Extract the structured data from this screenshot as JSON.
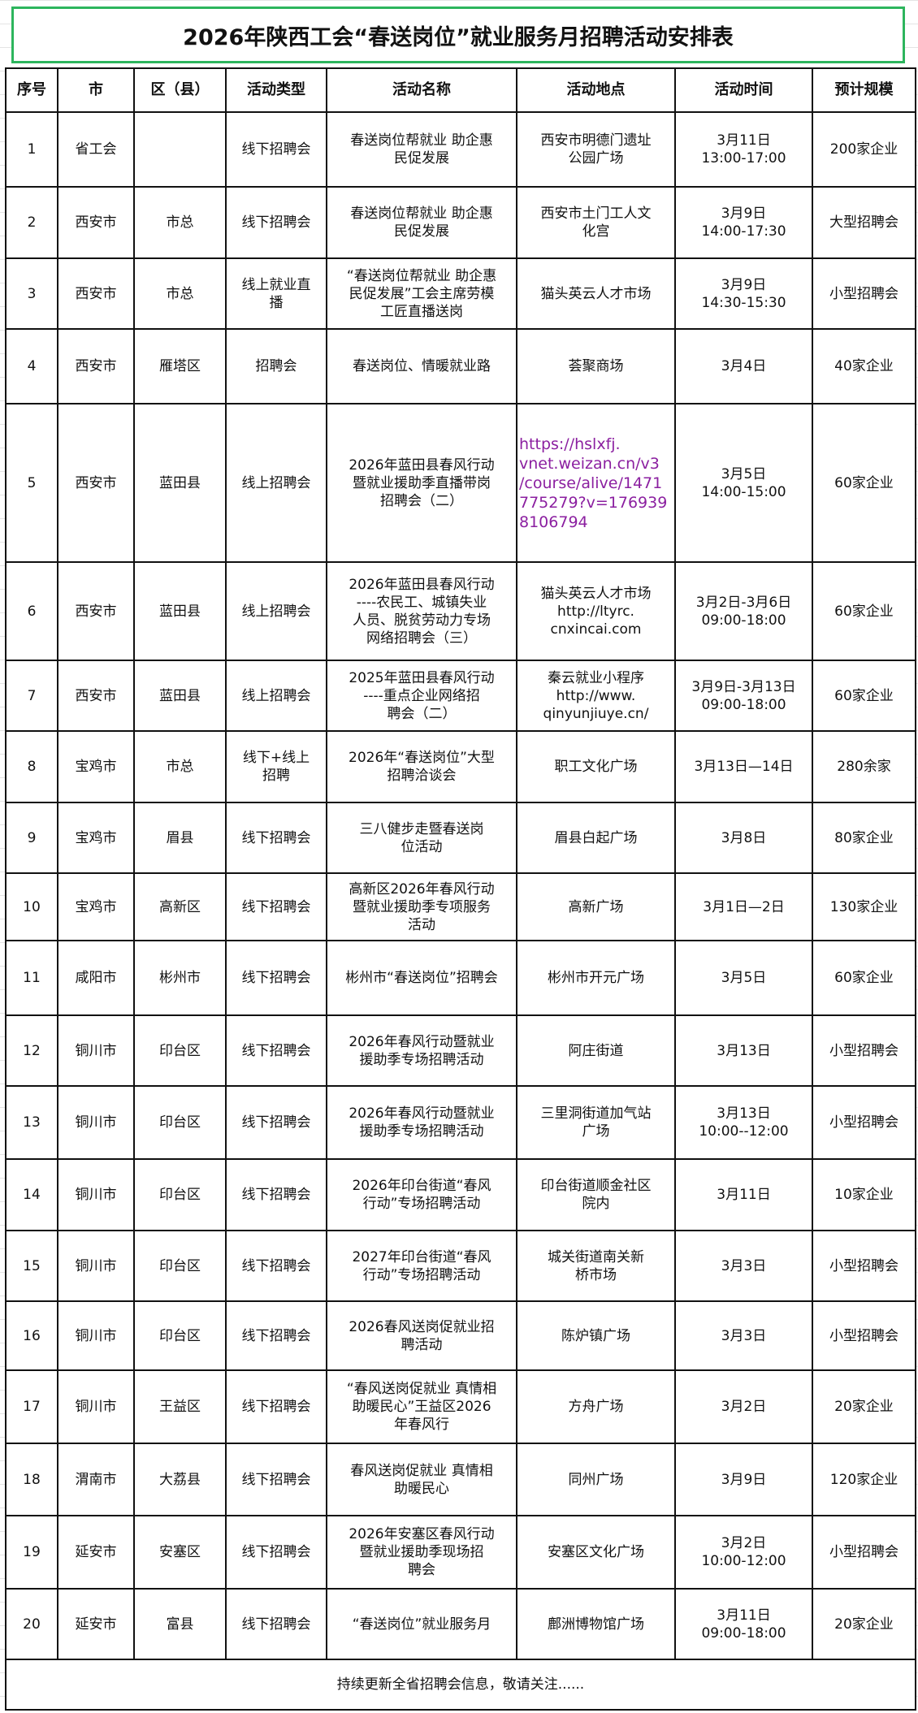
{
  "title": "2026年陕西工会“春送岗位”就业服务月招聘活动安排表",
  "headers": [
    "序号",
    "市",
    "区（县）",
    "活动类型",
    "活动名称",
    "活动地点",
    "活动时间",
    "预计规模"
  ],
  "rows": [
    [
      "1",
      "省工会",
      "",
      "线下招聘会",
      "春送岗位帮就业 助企惠\n民促发展",
      "西安市明德门遗址\n公园广场",
      "3月11日\n13:00-17:00",
      "200家企业"
    ],
    [
      "2",
      "西安市",
      "市总",
      "线下招聘会",
      "春送岗位帮就业 助企惠\n民促发展",
      "西安市土门工人文\n化宫",
      "3月9日\n14:00-17:30",
      "大型招聘会"
    ],
    [
      "3",
      "西安市",
      "市总",
      "线上就业直\n播",
      "“春送岗位帮就业 助企惠\n民促发展”工会主席劳模\n工匠直播送岗",
      "猫头英云人才市场",
      "3月9日\n14:30-15:30",
      "小型招聘会"
    ],
    [
      "4",
      "西安市",
      "雁塔区",
      "招聘会",
      "春送岗位、情暖就业路",
      "荟聚商场",
      "3月4日",
      "40家企业"
    ],
    [
      "5",
      "西安市",
      "蓝田县",
      "线上招聘会",
      "2026年蓝田县春风行动\n暨就业援助季直播带岗\n招聘会（二）",
      "https://hslxfj.\nvnet.weizan.cn/v3\n/course/alive/1471\n775279?v=176939\n8106794",
      "3月5日\n14:00-15:00",
      "60家企业"
    ],
    [
      "6",
      "西安市",
      "蓝田县",
      "线上招聘会",
      "2026年蓝田县春风行动\n----农民工、城镇失业\n人员、脱贫劳动力专场\n网络招聘会（三）",
      "猫头英云人才市场\nhttp://ltyrc.\ncnxincai.com",
      "3月2日-3月6日\n09:00-18:00",
      "60家企业"
    ],
    [
      "7",
      "西安市",
      "蓝田县",
      "线上招聘会",
      "2025年蓝田县春风行动\n----重点企业网络招\n聘会（二）",
      "秦云就业小程序\nhttp://www.\nqinyunjiuye.cn/",
      "3月9日-3月13日\n09:00-18:00",
      "60家企业"
    ],
    [
      "8",
      "宝鸡市",
      "市总",
      "线下+线上\n招聘",
      "2026年“春送岗位”大型\n招聘洽谈会",
      "职工文化广场",
      "3月13日—14日",
      "280余家"
    ],
    [
      "9",
      "宝鸡市",
      "眉县",
      "线下招聘会",
      "三八健步走暨春送岗\n位活动",
      "眉县白起广场",
      "3月8日",
      "80家企业"
    ],
    [
      "10",
      "宝鸡市",
      "高新区",
      "线下招聘会",
      "高新区2026年春风行动\n暨就业援助季专项服务\n活动",
      "高新广场",
      "3月1日—2日",
      "130家企业"
    ],
    [
      "11",
      "咸阳市",
      "彬州市",
      "线下招聘会",
      "彬州市“春送岗位”招聘会",
      "彬州市开元广场",
      "3月5日",
      "60家企业"
    ],
    [
      "12",
      "铜川市",
      "印台区",
      "线下招聘会",
      "2026年春风行动暨就业\n援助季专场招聘活动",
      "阿庄街道",
      "3月13日",
      "小型招聘会"
    ],
    [
      "13",
      "铜川市",
      "印台区",
      "线下招聘会",
      "2026年春风行动暨就业\n援助季专场招聘活动",
      "三里洞街道加气站\n广场",
      "3月13日\n10:00--12:00",
      "小型招聘会"
    ],
    [
      "14",
      "铜川市",
      "印台区",
      "线下招聘会",
      "2026年印台街道“春风\n行动”专场招聘活动",
      "印台街道顺金社区\n院内",
      "3月11日",
      "10家企业"
    ],
    [
      "15",
      "铜川市",
      "印台区",
      "线下招聘会",
      "2027年印台街道“春风\n行动”专场招聘活动",
      "城关街道南关新\n桥市场",
      "3月3日",
      "小型招聘会"
    ],
    [
      "16",
      "铜川市",
      "印台区",
      "线下招聘会",
      "2026春风送岗促就业招\n聘活动",
      "陈炉镇广场",
      "3月3日",
      "小型招聘会"
    ],
    [
      "17",
      "铜川市",
      "王益区",
      "线下招聘会",
      "“春风送岗促就业 真情相\n助暖民心”王益区2026\n年春风行",
      "方舟广场",
      "3月2日",
      "20家企业"
    ],
    [
      "18",
      "渭南市",
      "大荔县",
      "线下招聘会",
      "春风送岗促就业 真情相\n助暖民心",
      "同州广场",
      "3月9日",
      "120家企业"
    ],
    [
      "19",
      "延安市",
      "安塞区",
      "线下招聘会",
      "2026年安塞区春风行动\n暨就业援助季现场招\n聘会",
      "安塞区文化广场",
      "3月2日\n10:00-12:00",
      "小型招聘会"
    ],
    [
      "20",
      "延安市",
      "富县",
      "线下招聘会",
      "“春送岗位”就业服务月",
      "鄜洲博物馆广场",
      "3月11日\n09:00-18:00",
      "20家企业"
    ]
  ],
  "footer": "持续更新全省招聘会信息，敬请关注......",
  "colors": {
    "title_border": "#2db55d",
    "link": "#8b1fa0"
  }
}
